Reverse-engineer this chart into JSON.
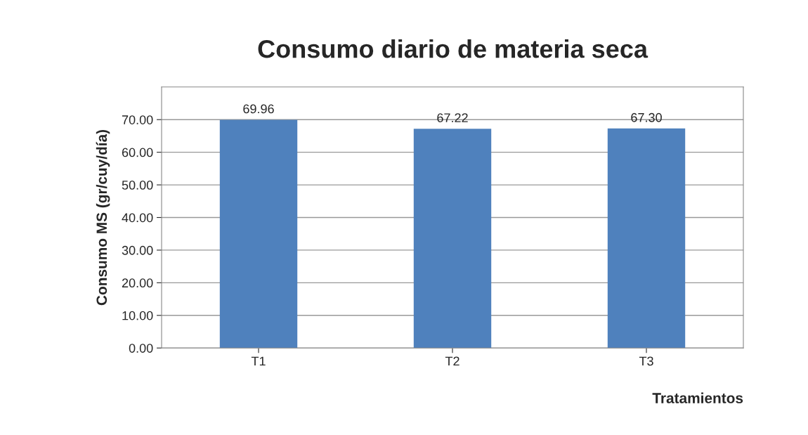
{
  "chart_data": {
    "type": "bar",
    "title": "Consumo diario de materia seca",
    "xlabel": "Tratamientos",
    "ylabel": "Consumo MS (gr/cuy/día)",
    "categories": [
      "T1",
      "T2",
      "T3"
    ],
    "values": [
      69.96,
      67.22,
      67.3
    ],
    "color": "#4f81bd",
    "ylim": [
      0,
      80
    ],
    "yticks": [
      {
        "value": 0,
        "label": "0.00"
      },
      {
        "value": 10,
        "label": "10.00"
      },
      {
        "value": 20,
        "label": "20.00"
      },
      {
        "value": 30,
        "label": "30.00"
      },
      {
        "value": 40,
        "label": "40.00"
      },
      {
        "value": 50,
        "label": "50.00"
      },
      {
        "value": 60,
        "label": "60.00"
      },
      {
        "value": 70,
        "label": "70.00"
      }
    ],
    "value_labels": [
      "69.96",
      "67.22",
      "67.30"
    ],
    "grid": "y"
  }
}
